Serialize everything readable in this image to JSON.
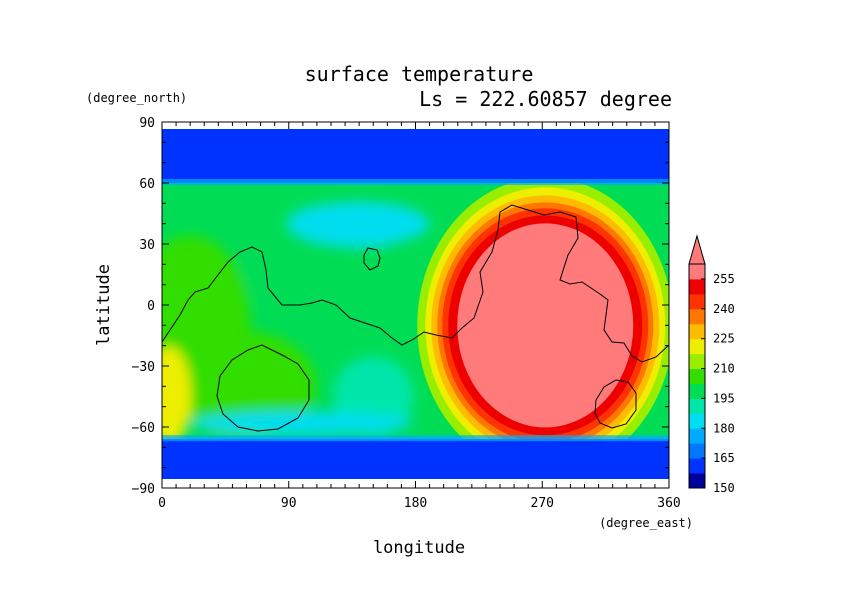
{
  "chart_data": {
    "type": "heatmap",
    "title": "surface temperature",
    "subtitle": "Ls = 222.60857 degree",
    "xlabel": "longitude",
    "ylabel": "latitude",
    "x_units": "(degree_east)",
    "y_units": "(degree_north)",
    "xlim": [
      0,
      360
    ],
    "ylim": [
      -90,
      90
    ],
    "x_ticks": [
      "0",
      "90",
      "180",
      "270",
      "360"
    ],
    "y_ticks": [
      "90",
      "60",
      "30",
      "0",
      "−30",
      "−60",
      "−90"
    ],
    "grid": false,
    "colorbar": {
      "labels": [
        "255",
        "240",
        "225",
        "210",
        "195",
        "180",
        "165",
        "150"
      ],
      "extend": "max",
      "palette": [
        "#00009a",
        "#0033ff",
        "#0077ff",
        "#00aaff",
        "#00ddee",
        "#00e6aa",
        "#00dd55",
        "#33dd00",
        "#99ee00",
        "#eeee00",
        "#ffbb00",
        "#ff7700",
        "#ff3300",
        "#ee0000",
        "#ff7a7a"
      ],
      "highlight_color": "#ff7a7a"
    },
    "features": {
      "polar_cap_north_lat": 60,
      "polar_cap_south_lat": -66,
      "warm_region_center": {
        "lon": 270,
        "lat": -12,
        "approx_value_K": 260
      }
    }
  }
}
